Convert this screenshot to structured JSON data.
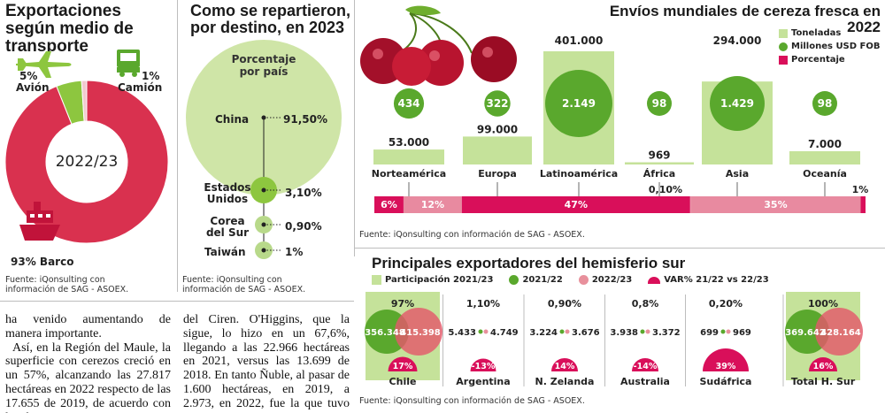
{
  "chart_data": [
    {
      "type": "pie",
      "title": "Exportaciones según medio de transporte",
      "center_label": "2022/23",
      "categories": [
        "Barco",
        "Avión",
        "Camión"
      ],
      "values": [
        93,
        5,
        1
      ],
      "value_labels": [
        "93%",
        "5%",
        "1%"
      ],
      "colors": [
        "#d9314f",
        "#8dc63f",
        "#f2c9cf"
      ],
      "icons": [
        "ship-icon",
        "airplane-icon",
        "truck-icon"
      ],
      "source": "Fuente: iQonsulting con información de SAG - ASOEX."
    },
    {
      "type": "bubble",
      "title": "Como se repartieron, por destino, en 2023",
      "subtitle": "Porcentaje por país",
      "categories": [
        "China",
        "Estados Unidos",
        "Corea del Sur",
        "Taiwán"
      ],
      "values": [
        91.5,
        3.1,
        0.9,
        1
      ],
      "value_labels": [
        "91,50%",
        "3,10%",
        "0,90%",
        "1%"
      ],
      "source": "Fuente: iQonsulting con información de SAG - ASOEX."
    },
    {
      "type": "bar",
      "title": "Envíos mundiales de cereza fresca en 2022",
      "legend": [
        "Toneladas",
        "Millones USD FOB",
        "Porcentaje"
      ],
      "categories": [
        "Norteamérica",
        "Europa",
        "Latinoamérica",
        "África",
        "Asia",
        "Oceanía"
      ],
      "series": [
        {
          "name": "Toneladas",
          "values": [
            53000,
            99000,
            401000,
            969,
            294000,
            7000
          ],
          "labels": [
            "53.000",
            "99.000",
            "401.000",
            "969",
            "294.000",
            "7.000"
          ]
        },
        {
          "name": "Millones USD FOB",
          "values": [
            434,
            322,
            2149,
            98,
            1429,
            98
          ],
          "labels": [
            "434",
            "322",
            "2.149",
            "98",
            "1.429",
            "98"
          ]
        },
        {
          "name": "Porcentaje",
          "values": [
            6,
            12,
            47,
            0.1,
            35,
            1
          ],
          "labels": [
            "6%",
            "12%",
            "47%",
            "0,10%",
            "35%",
            "1%"
          ]
        }
      ],
      "colors": {
        "toneladas": "#c5e29a",
        "usd": "#5aa82d",
        "porcentaje": "#d90f5a",
        "porcentaje_light": "#e88aa0"
      },
      "source": "Fuente: iQonsulting con información de SAG - ASOEX."
    },
    {
      "type": "bubble",
      "title": "Principales exportadores del hemisferio sur",
      "legend": [
        "Participación 2021/23",
        "2021/22",
        "2022/23",
        "VAR% 21/22 vs 22/23"
      ],
      "categories": [
        "Chile",
        "Argentina",
        "N. Zelanda",
        "Australia",
        "Sudáfrica",
        "Total H. Sur"
      ],
      "series": [
        {
          "name": "Participación 2021/23",
          "values": [
            97,
            1.1,
            0.9,
            0.8,
            0.2,
            100
          ],
          "labels": [
            "97%",
            "1,10%",
            "0,90%",
            "0,8%",
            "0,20%",
            "100%"
          ]
        },
        {
          "name": "2021/22",
          "values": [
            356348,
            5433,
            3224,
            3938,
            699,
            369642
          ],
          "labels": [
            "356.348",
            "5.433",
            "3.224",
            "3.938",
            "699",
            "369.642"
          ]
        },
        {
          "name": "2022/23",
          "values": [
            415398,
            4749,
            3676,
            3372,
            969,
            428164
          ],
          "labels": [
            "415.398",
            "4.749",
            "3.676",
            "3.372",
            "969",
            "428.164"
          ]
        },
        {
          "name": "VAR% 21/22 vs 22/23",
          "values": [
            17,
            -13,
            14,
            -14,
            39,
            16
          ],
          "labels": [
            "17%",
            "-13%",
            "14%",
            "-14%",
            "39%",
            "16%"
          ]
        }
      ],
      "source": "Fuente: iQonsulting con información de SAG - ASOEX."
    }
  ],
  "article": {
    "col1": [
      "ha venido aumentando de manera importante.",
      "Así, en la Región del Maule, la superficie con cerezos creció en un 57%, alcanzando las 27.817 hectáreas en 2022 respecto de las 17.655 de 2019, de acuerdo con los datos"
    ],
    "col2": [
      "del Ciren. O'Higgins, que la sigue, lo hizo en un 67,6%, llegando a las 22.966 hectáreas en 2021, versus las 13.699 de 2018. En tanto Ñuble, al pasar de 1.600 hectáreas, en 2019, a 2.973, en 2022, fue la que tuvo un mayor crecimiento."
    ]
  }
}
